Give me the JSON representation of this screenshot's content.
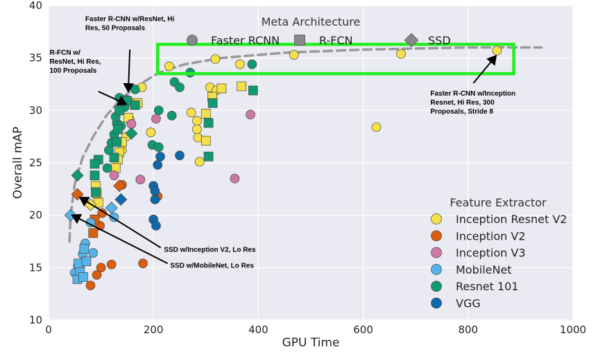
{
  "chart_data": {
    "type": "scatter",
    "xlabel": "GPU Time",
    "ylabel": "Overall mAP",
    "xlim": [
      0,
      1000
    ],
    "ylim": [
      10,
      40
    ],
    "xticks": [
      0,
      200,
      400,
      600,
      800,
      1000
    ],
    "yticks": [
      10,
      15,
      20,
      25,
      30,
      35,
      40
    ],
    "grid": true,
    "colors": {
      "Inception Resnet V2": "#f5e04a",
      "Inception V2": "#d95f0e",
      "Inception V3": "#cc79a7",
      "MobileNet": "#56b4e9",
      "Resnet 101": "#119a72",
      "VGG": "#0f68a8",
      "frontier": "#999999",
      "highlight": "#22ee22"
    },
    "legend_meta": {
      "title": "Meta Architecture",
      "placement": "top-center",
      "items": [
        {
          "label": "Faster RCNN",
          "shape": "circle"
        },
        {
          "label": "R-FCN",
          "shape": "square"
        },
        {
          "label": "SSD",
          "shape": "diamond"
        }
      ]
    },
    "legend_feature": {
      "title": "Feature Extractor",
      "placement": "lower-right",
      "items": [
        "Inception Resnet V2",
        "Inception V2",
        "Inception V3",
        "MobileNet",
        "Resnet 101",
        "VGG"
      ]
    },
    "frontier": [
      [
        40,
        17.5
      ],
      [
        42,
        20
      ],
      [
        50,
        23
      ],
      [
        65,
        25.5
      ],
      [
        85,
        27.5
      ],
      [
        110,
        29.5
      ],
      [
        140,
        31.2
      ],
      [
        175,
        32.5
      ],
      [
        210,
        33.6
      ],
      [
        260,
        34.4
      ],
      [
        330,
        35.0
      ],
      [
        450,
        35.5
      ],
      [
        600,
        35.8
      ],
      [
        800,
        36.0
      ],
      [
        940,
        36.0
      ]
    ],
    "highlight_box": {
      "x": [
        208,
        887
      ],
      "y": [
        33.5,
        36.3
      ]
    },
    "points": [
      {
        "x": 230,
        "y": 34.2,
        "extractor": "Inception Resnet V2",
        "meta": "Faster RCNN"
      },
      {
        "x": 318,
        "y": 34.9,
        "extractor": "Inception Resnet V2",
        "meta": "Faster RCNN"
      },
      {
        "x": 365,
        "y": 34.4,
        "extractor": "Inception Resnet V2",
        "meta": "Faster RCNN"
      },
      {
        "x": 468,
        "y": 35.3,
        "extractor": "Inception Resnet V2",
        "meta": "Faster RCNN"
      },
      {
        "x": 672,
        "y": 35.4,
        "extractor": "Inception Resnet V2",
        "meta": "Faster RCNN"
      },
      {
        "x": 855,
        "y": 35.7,
        "extractor": "Inception Resnet V2",
        "meta": "Faster RCNN"
      },
      {
        "x": 625,
        "y": 28.4,
        "extractor": "Inception Resnet V2",
        "meta": "Faster RCNN"
      },
      {
        "x": 178,
        "y": 32.2,
        "extractor": "Inception Resnet V2",
        "meta": "Faster RCNN"
      },
      {
        "x": 150,
        "y": 31.0,
        "extractor": "Inception Resnet V2",
        "meta": "Faster RCNN"
      },
      {
        "x": 195,
        "y": 27.9,
        "extractor": "Inception Resnet V2",
        "meta": "Faster RCNN"
      },
      {
        "x": 272,
        "y": 29.8,
        "extractor": "Inception Resnet V2",
        "meta": "Faster RCNN"
      },
      {
        "x": 283,
        "y": 29.0,
        "extractor": "Inception Resnet V2",
        "meta": "Faster RCNN"
      },
      {
        "x": 283,
        "y": 28.2,
        "extractor": "Inception Resnet V2",
        "meta": "Faster RCNN"
      },
      {
        "x": 285,
        "y": 27.4,
        "extractor": "Inception Resnet V2",
        "meta": "Faster RCNN"
      },
      {
        "x": 288,
        "y": 25.1,
        "extractor": "Inception Resnet V2",
        "meta": "Faster RCNN"
      },
      {
        "x": 308,
        "y": 32.2,
        "extractor": "Inception Resnet V2",
        "meta": "Faster RCNN"
      },
      {
        "x": 320,
        "y": 31.9,
        "extractor": "Inception Resnet V2",
        "meta": "Faster RCNN"
      },
      {
        "x": 155,
        "y": 29.1,
        "extractor": "Inception Resnet V2",
        "meta": "Faster RCNN"
      },
      {
        "x": 148,
        "y": 27.5,
        "extractor": "Inception Resnet V2",
        "meta": "Faster RCNN"
      },
      {
        "x": 140,
        "y": 26.2,
        "extractor": "Inception Resnet V2",
        "meta": "Faster RCNN"
      },
      {
        "x": 158,
        "y": 30.7,
        "extractor": "Inception Resnet V2",
        "meta": "R-FCN"
      },
      {
        "x": 170,
        "y": 30.7,
        "extractor": "Inception Resnet V2",
        "meta": "R-FCN"
      },
      {
        "x": 152,
        "y": 29.3,
        "extractor": "Inception Resnet V2",
        "meta": "R-FCN"
      },
      {
        "x": 140,
        "y": 27.0,
        "extractor": "Inception Resnet V2",
        "meta": "R-FCN"
      },
      {
        "x": 135,
        "y": 26.0,
        "extractor": "Inception Resnet V2",
        "meta": "R-FCN"
      },
      {
        "x": 132,
        "y": 25.3,
        "extractor": "Inception Resnet V2",
        "meta": "R-FCN"
      },
      {
        "x": 128,
        "y": 24.5,
        "extractor": "Inception Resnet V2",
        "meta": "R-FCN"
      },
      {
        "x": 90,
        "y": 22.8,
        "extractor": "Inception Resnet V2",
        "meta": "R-FCN"
      },
      {
        "x": 92,
        "y": 22.1,
        "extractor": "Inception Resnet V2",
        "meta": "R-FCN"
      },
      {
        "x": 95,
        "y": 21.2,
        "extractor": "Inception Resnet V2",
        "meta": "R-FCN"
      },
      {
        "x": 300,
        "y": 29.7,
        "extractor": "Inception Resnet V2",
        "meta": "R-FCN"
      },
      {
        "x": 300,
        "y": 27.1,
        "extractor": "Inception Resnet V2",
        "meta": "R-FCN"
      },
      {
        "x": 312,
        "y": 31.3,
        "extractor": "Inception Resnet V2",
        "meta": "R-FCN"
      },
      {
        "x": 330,
        "y": 32.1,
        "extractor": "Inception Resnet V2",
        "meta": "R-FCN"
      },
      {
        "x": 368,
        "y": 32.3,
        "extractor": "Inception Resnet V2",
        "meta": "R-FCN"
      },
      {
        "x": 80,
        "y": 21.0,
        "extractor": "Inception Resnet V2",
        "meta": "SSD"
      },
      {
        "x": 92,
        "y": 14.3,
        "extractor": "Inception V2",
        "meta": "Faster RCNN"
      },
      {
        "x": 100,
        "y": 15.0,
        "extractor": "Inception V2",
        "meta": "Faster RCNN"
      },
      {
        "x": 120,
        "y": 15.3,
        "extractor": "Inception V2",
        "meta": "Faster RCNN"
      },
      {
        "x": 180,
        "y": 15.4,
        "extractor": "Inception V2",
        "meta": "Faster RCNN"
      },
      {
        "x": 80,
        "y": 13.3,
        "extractor": "Inception V2",
        "meta": "Faster RCNN"
      },
      {
        "x": 98,
        "y": 19.0,
        "extractor": "Inception V2",
        "meta": "Faster RCNN"
      },
      {
        "x": 102,
        "y": 20.2,
        "extractor": "Inception V2",
        "meta": "Faster RCNN"
      },
      {
        "x": 140,
        "y": 22.9,
        "extractor": "Inception V2",
        "meta": "Faster RCNN"
      },
      {
        "x": 208,
        "y": 21.8,
        "extractor": "Inception V2",
        "meta": "Faster RCNN"
      },
      {
        "x": 85,
        "y": 18.3,
        "extractor": "Inception V2",
        "meta": "R-FCN"
      },
      {
        "x": 88,
        "y": 19.6,
        "extractor": "Inception V2",
        "meta": "R-FCN"
      },
      {
        "x": 55,
        "y": 22.0,
        "extractor": "Inception V2",
        "meta": "SSD"
      },
      {
        "x": 135,
        "y": 22.8,
        "extractor": "Inception V2",
        "meta": "SSD"
      },
      {
        "x": 175,
        "y": 23.4,
        "extractor": "Inception V3",
        "meta": "Faster RCNN"
      },
      {
        "x": 205,
        "y": 29.2,
        "extractor": "Inception V3",
        "meta": "Faster RCNN"
      },
      {
        "x": 355,
        "y": 23.5,
        "extractor": "Inception V3",
        "meta": "Faster RCNN"
      },
      {
        "x": 385,
        "y": 29.6,
        "extractor": "Inception V3",
        "meta": "Faster RCNN"
      },
      {
        "x": 125,
        "y": 23.8,
        "extractor": "Inception V3",
        "meta": "Faster RCNN"
      },
      {
        "x": 158,
        "y": 28.7,
        "extractor": "Inception V3",
        "meta": "Faster RCNN"
      },
      {
        "x": 50,
        "y": 14.5,
        "extractor": "MobileNet",
        "meta": "Faster RCNN"
      },
      {
        "x": 56,
        "y": 15.2,
        "extractor": "MobileNet",
        "meta": "Faster RCNN"
      },
      {
        "x": 65,
        "y": 16.3,
        "extractor": "MobileNet",
        "meta": "Faster RCNN"
      },
      {
        "x": 70,
        "y": 17.3,
        "extractor": "MobileNet",
        "meta": "Faster RCNN"
      },
      {
        "x": 85,
        "y": 16.4,
        "extractor": "MobileNet",
        "meta": "Faster RCNN"
      },
      {
        "x": 80,
        "y": 19.3,
        "extractor": "MobileNet",
        "meta": "Faster RCNN"
      },
      {
        "x": 125,
        "y": 19.8,
        "extractor": "MobileNet",
        "meta": "Faster RCNN"
      },
      {
        "x": 55,
        "y": 13.9,
        "extractor": "MobileNet",
        "meta": "R-FCN"
      },
      {
        "x": 60,
        "y": 14.7,
        "extractor": "MobileNet",
        "meta": "R-FCN"
      },
      {
        "x": 57,
        "y": 15.4,
        "extractor": "MobileNet",
        "meta": "R-FCN"
      },
      {
        "x": 72,
        "y": 15.6,
        "extractor": "MobileNet",
        "meta": "R-FCN"
      },
      {
        "x": 68,
        "y": 16.8,
        "extractor": "MobileNet",
        "meta": "R-FCN"
      },
      {
        "x": 66,
        "y": 14.1,
        "extractor": "MobileNet",
        "meta": "R-FCN"
      },
      {
        "x": 42,
        "y": 20.0,
        "extractor": "MobileNet",
        "meta": "SSD"
      },
      {
        "x": 120,
        "y": 20.7,
        "extractor": "MobileNet",
        "meta": "SSD"
      },
      {
        "x": 130,
        "y": 28.8,
        "extractor": "Resnet 101",
        "meta": "Faster RCNN"
      },
      {
        "x": 145,
        "y": 30.3,
        "extractor": "Resnet 101",
        "meta": "Faster RCNN"
      },
      {
        "x": 148,
        "y": 31.0,
        "extractor": "Resnet 101",
        "meta": "Faster RCNN"
      },
      {
        "x": 165,
        "y": 32.0,
        "extractor": "Resnet 101",
        "meta": "Faster RCNN"
      },
      {
        "x": 210,
        "y": 30.0,
        "extractor": "Resnet 101",
        "meta": "Faster RCNN"
      },
      {
        "x": 240,
        "y": 32.7,
        "extractor": "Resnet 101",
        "meta": "Faster RCNN"
      },
      {
        "x": 250,
        "y": 32.2,
        "extractor": "Resnet 101",
        "meta": "Faster RCNN"
      },
      {
        "x": 270,
        "y": 33.6,
        "extractor": "Resnet 101",
        "meta": "Faster RCNN"
      },
      {
        "x": 388,
        "y": 34.4,
        "extractor": "Resnet 101",
        "meta": "Faster RCNN"
      },
      {
        "x": 235,
        "y": 29.5,
        "extractor": "Resnet 101",
        "meta": "Faster RCNN"
      },
      {
        "x": 198,
        "y": 26.7,
        "extractor": "Resnet 101",
        "meta": "Faster RCNN"
      },
      {
        "x": 210,
        "y": 26.5,
        "extractor": "Resnet 101",
        "meta": "Faster RCNN"
      },
      {
        "x": 115,
        "y": 26.2,
        "extractor": "Resnet 101",
        "meta": "Faster RCNN"
      },
      {
        "x": 112,
        "y": 24.5,
        "extractor": "Resnet 101",
        "meta": "Faster RCNN"
      },
      {
        "x": 125,
        "y": 27.7,
        "extractor": "Resnet 101",
        "meta": "Faster RCNN"
      },
      {
        "x": 120,
        "y": 26.9,
        "extractor": "Resnet 101",
        "meta": "Faster RCNN"
      },
      {
        "x": 135,
        "y": 31.2,
        "extractor": "Resnet 101",
        "meta": "Faster RCNN"
      },
      {
        "x": 128,
        "y": 29.4,
        "extractor": "Resnet 101",
        "meta": "Faster RCNN"
      },
      {
        "x": 138,
        "y": 28.5,
        "extractor": "Resnet 101",
        "meta": "Faster RCNN"
      },
      {
        "x": 150,
        "y": 30.9,
        "extractor": "Resnet 101",
        "meta": "R-FCN"
      },
      {
        "x": 165,
        "y": 30.5,
        "extractor": "Resnet 101",
        "meta": "R-FCN"
      },
      {
        "x": 135,
        "y": 30.0,
        "extractor": "Resnet 101",
        "meta": "R-FCN"
      },
      {
        "x": 132,
        "y": 28.2,
        "extractor": "Resnet 101",
        "meta": "R-FCN"
      },
      {
        "x": 130,
        "y": 27.0,
        "extractor": "Resnet 101",
        "meta": "R-FCN"
      },
      {
        "x": 125,
        "y": 25.5,
        "extractor": "Resnet 101",
        "meta": "R-FCN"
      },
      {
        "x": 95,
        "y": 25.3,
        "extractor": "Resnet 101",
        "meta": "R-FCN"
      },
      {
        "x": 88,
        "y": 24.9,
        "extractor": "Resnet 101",
        "meta": "R-FCN"
      },
      {
        "x": 88,
        "y": 23.8,
        "extractor": "Resnet 101",
        "meta": "R-FCN"
      },
      {
        "x": 90,
        "y": 22.2,
        "extractor": "Resnet 101",
        "meta": "R-FCN"
      },
      {
        "x": 305,
        "y": 28.8,
        "extractor": "Resnet 101",
        "meta": "R-FCN"
      },
      {
        "x": 305,
        "y": 25.6,
        "extractor": "Resnet 101",
        "meta": "R-FCN"
      },
      {
        "x": 313,
        "y": 30.7,
        "extractor": "Resnet 101",
        "meta": "R-FCN"
      },
      {
        "x": 390,
        "y": 31.9,
        "extractor": "Resnet 101",
        "meta": "R-FCN"
      },
      {
        "x": 55,
        "y": 23.8,
        "extractor": "Resnet 101",
        "meta": "SSD"
      },
      {
        "x": 158,
        "y": 27.8,
        "extractor": "Resnet 101",
        "meta": "SSD"
      },
      {
        "x": 200,
        "y": 22.8,
        "extractor": "VGG",
        "meta": "Faster RCNN"
      },
      {
        "x": 203,
        "y": 22.3,
        "extractor": "VGG",
        "meta": "Faster RCNN"
      },
      {
        "x": 203,
        "y": 21.5,
        "extractor": "VGG",
        "meta": "Faster RCNN"
      },
      {
        "x": 200,
        "y": 19.6,
        "extractor": "VGG",
        "meta": "Faster RCNN"
      },
      {
        "x": 205,
        "y": 19.0,
        "extractor": "VGG",
        "meta": "Faster RCNN"
      },
      {
        "x": 213,
        "y": 25.6,
        "extractor": "VGG",
        "meta": "Faster RCNN"
      },
      {
        "x": 208,
        "y": 24.8,
        "extractor": "VGG",
        "meta": "Faster RCNN"
      },
      {
        "x": 250,
        "y": 25.7,
        "extractor": "VGG",
        "meta": "Faster RCNN"
      },
      {
        "x": 138,
        "y": 21.5,
        "extractor": "VGG",
        "meta": "SSD"
      }
    ],
    "annotations": [
      {
        "lines": [
          "Faster R-CNN w/ResNet, Hi",
          "Res, 50 Proposals"
        ],
        "text_at": [
          70,
          38.5
        ],
        "arrow_from": [
          155,
          35.8
        ],
        "arrow_to": [
          152,
          31.8
        ]
      },
      {
        "lines": [
          "R-FCN w/",
          "ResNet, Hi Res,",
          "100 Proposals"
        ],
        "text_at": [
          2,
          35.3
        ],
        "arrow_from": [
          95,
          31.8
        ],
        "arrow_to": [
          148,
          30.6
        ]
      },
      {
        "lines": [
          "Faster R-CNN w/Inception",
          "Resnet, Hi Res, 300",
          "Proposals, Stride 8"
        ],
        "text_at": [
          728,
          31.4
        ],
        "arrow_from": [
          810,
          32.6
        ],
        "arrow_to": [
          853,
          35.2
        ]
      },
      {
        "lines": [
          "SSD w/Inception V2, Lo Res"
        ],
        "text_at": [
          220,
          16.5
        ],
        "arrow_from": [
          214,
          16.9
        ],
        "arrow_to": [
          60,
          21.7
        ]
      },
      {
        "lines": [
          "SSD w/MobileNet, Lo Res"
        ],
        "text_at": [
          232,
          15.0
        ],
        "arrow_from": [
          227,
          15.4
        ],
        "arrow_to": [
          45,
          20.0
        ]
      }
    ]
  }
}
